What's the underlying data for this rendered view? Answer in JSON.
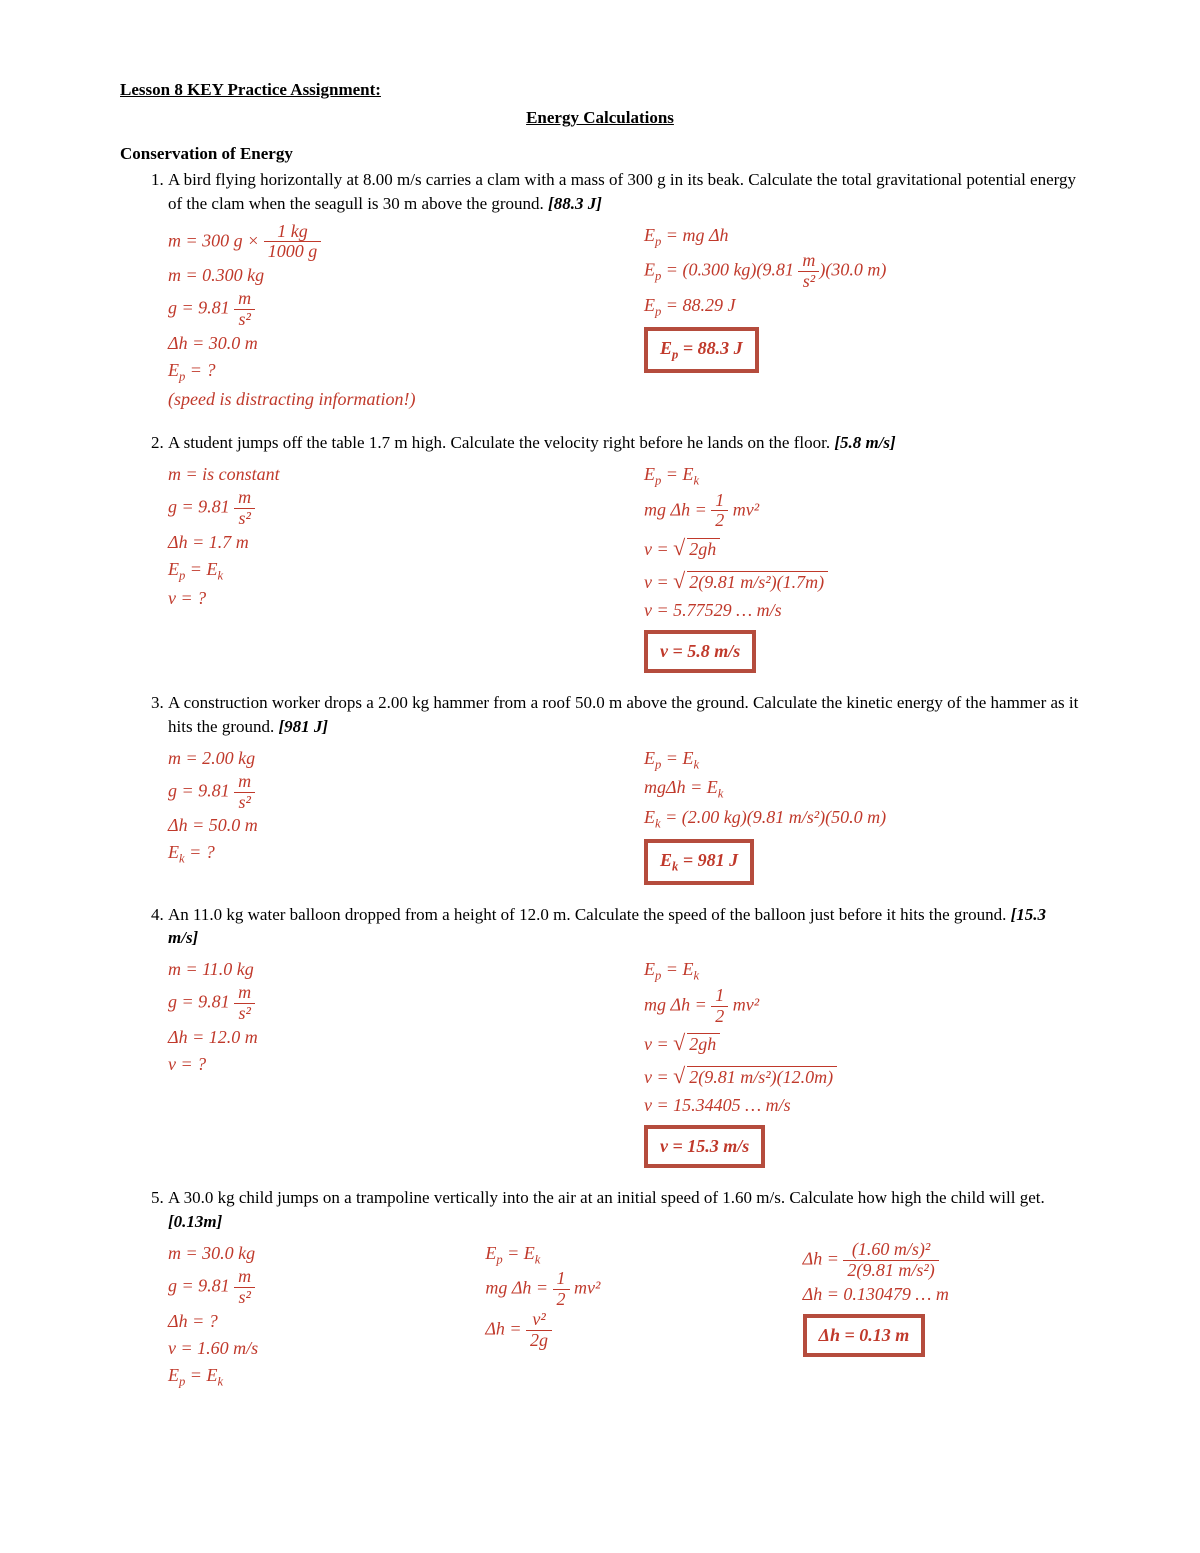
{
  "header": {
    "lesson_title": "Lesson 8 KEY Practice Assignment:",
    "subtitle": "Energy Calculations",
    "section": "Conservation of Energy"
  },
  "colors": {
    "work": "#c0392b",
    "box_border": "#b54c3d",
    "text": "#000000",
    "background": "#ffffff"
  },
  "problems": [
    {
      "num": "1.",
      "text": "A bird flying horizontally at 8.00 m/s carries a clam with a mass of 300 g in its beak.  Calculate the total gravitational potential energy of the clam when the seagull is 30 m above the ground.  ",
      "hint": "[88.3 J]",
      "left": [
        "m = 300 g × <frac>1 kg|1000 g</frac>",
        "m = 0.300 kg",
        "g = 9.81 <frac>m|s²</frac>",
        "Δh = 30.0 m",
        "E<sub>p</sub> = ?",
        "(speed is distracting information!)"
      ],
      "right": [
        "E<sub>p</sub> = mg Δh",
        "E<sub>p</sub> = (0.300 kg)(9.81 <frac>m|s²</frac>)(30.0 m)",
        "E<sub>p</sub> = 88.29 J"
      ],
      "boxed": "E<sub>p</sub> = 88.3 J"
    },
    {
      "num": "2.",
      "text": "A student jumps off the table 1.7 m high. Calculate the velocity right before he lands on the floor. ",
      "hint": "[5.8 m/s]",
      "left": [
        "m = is constant",
        "g = 9.81 <frac>m|s²</frac>",
        "Δh = 1.7 m",
        "E<sub>p</sub> = E<sub>k</sub>",
        "v = ?"
      ],
      "right": [
        "E<sub>p</sub> = E<sub>k</sub>",
        "mg Δh = <frac>1|2</frac> mv²",
        "v = <sqrt>2gh</sqrt>",
        "v = <sqrt>2(9.81 m/s²)(1.7m)</sqrt>",
        "v = 5.77529 … m/s"
      ],
      "boxed": "v = 5.8 m/s"
    },
    {
      "num": "3.",
      "text": "A construction worker drops a 2.00 kg hammer from a roof 50.0 m above the ground.  Calculate the kinetic energy of the hammer as it hits the ground. ",
      "hint": "[981 J]",
      "left": [
        "m = 2.00 kg",
        "g = 9.81 <frac>m|s²</frac>",
        "Δh = 50.0 m",
        "E<sub>k</sub> = ?"
      ],
      "right": [
        "E<sub>p</sub> = E<sub>k</sub>",
        "mgΔh = E<sub>k</sub>",
        "E<sub>k</sub> = (2.00 kg)(9.81 m/s²)(50.0 m)"
      ],
      "boxed": "E<sub>k</sub> = 981 J"
    },
    {
      "num": "4.",
      "text": "An 11.0 kg water balloon dropped from a height of 12.0 m.  Calculate the speed of the balloon just before it hits the ground. ",
      "hint": "[15.3 m/s]",
      "left": [
        "m = 11.0 kg",
        "g = 9.81 <frac>m|s²</frac>",
        "Δh = 12.0 m",
        "v = ?"
      ],
      "right": [
        "E<sub>p</sub> = E<sub>k</sub>",
        "mg Δh = <frac>1|2</frac> mv²",
        "v = <sqrt>2gh</sqrt>",
        "v = <sqrt>2(9.81 m/s²)(12.0m)</sqrt>",
        "v = 15.34405 … m/s"
      ],
      "boxed": "v = 15.3 m/s"
    },
    {
      "num": "5.",
      "text": "A 30.0 kg child jumps on a trampoline vertically into the air at an initial speed of 1.60 m/s.  Calculate how high the child will get. ",
      "hint": "[0.13m]",
      "left": [
        "m = 30.0 kg",
        "g = 9.81 <frac>m|s²</frac>",
        "Δh = ?",
        "v = 1.60 m/s",
        "E<sub>p</sub> = E<sub>k</sub>"
      ],
      "mid": [
        "E<sub>p</sub> = E<sub>k</sub>",
        "mg Δh = <frac>1|2</frac> mv²",
        "Δh = <frac>v²|2g</frac>"
      ],
      "right": [
        "Δh = <frac>(1.60 m/s)²|2(9.81 m/s²)</frac>",
        "Δh = 0.130479 … m"
      ],
      "boxed": "Δh = 0.13 m"
    }
  ]
}
